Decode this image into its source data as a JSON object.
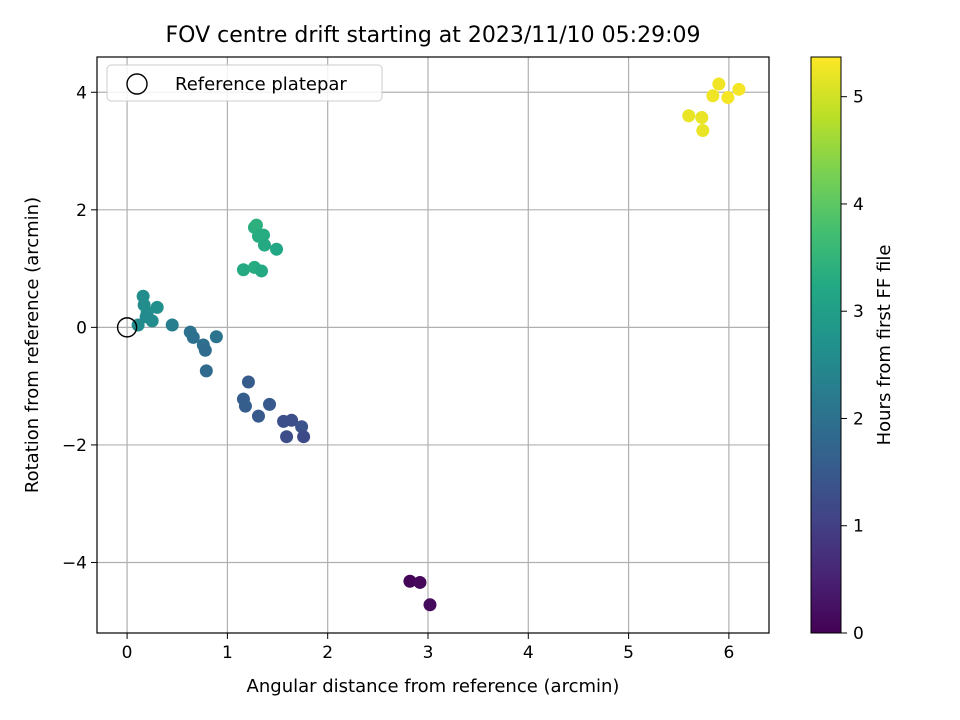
{
  "chart_data": {
    "type": "scatter",
    "title": "FOV centre drift starting at 2023/11/10 05:29:09",
    "xlabel": "Angular distance from reference (arcmin)",
    "ylabel": "Rotation from reference (arcmin)",
    "xlim": [
      -0.3,
      6.4
    ],
    "ylim": [
      -5.2,
      4.6
    ],
    "xticks": [
      0,
      1,
      2,
      3,
      4,
      5,
      6
    ],
    "yticks": [
      -4,
      -2,
      0,
      2,
      4
    ],
    "xtick_labels": [
      "0",
      "1",
      "2",
      "3",
      "4",
      "5",
      "6"
    ],
    "ytick_labels": [
      "−4",
      "−2",
      "0",
      "2",
      "4"
    ],
    "grid": true,
    "legend": {
      "position": "top-left",
      "entries": [
        {
          "label": "Reference platepar",
          "marker": "hollow-circle",
          "x": 0,
          "y": 0
        }
      ]
    },
    "colorbar": {
      "label": "Hours from first FF file",
      "colormap": "viridis",
      "range": [
        0,
        5.37
      ],
      "ticks": [
        0,
        1,
        2,
        3,
        4,
        5
      ],
      "tick_labels": [
        "0",
        "1",
        "2",
        "3",
        "4",
        "5"
      ]
    },
    "points": [
      {
        "x": 2.82,
        "y": -4.32,
        "h": 0.05
      },
      {
        "x": 2.92,
        "y": -4.34,
        "h": 0.1
      },
      {
        "x": 3.02,
        "y": -4.72,
        "h": 0.15
      },
      {
        "x": 1.56,
        "y": -1.6,
        "h": 1.3
      },
      {
        "x": 1.64,
        "y": -1.58,
        "h": 1.3
      },
      {
        "x": 1.74,
        "y": -1.69,
        "h": 1.35
      },
      {
        "x": 1.59,
        "y": -1.86,
        "h": 1.25
      },
      {
        "x": 1.76,
        "y": -1.86,
        "h": 1.2
      },
      {
        "x": 1.42,
        "y": -1.31,
        "h": 1.5
      },
      {
        "x": 1.21,
        "y": -0.93,
        "h": 1.55
      },
      {
        "x": 1.16,
        "y": -1.22,
        "h": 1.6
      },
      {
        "x": 1.18,
        "y": -1.34,
        "h": 1.6
      },
      {
        "x": 1.31,
        "y": -1.51,
        "h": 1.5
      },
      {
        "x": 0.63,
        "y": -0.08,
        "h": 2.0
      },
      {
        "x": 0.66,
        "y": -0.17,
        "h": 2.0
      },
      {
        "x": 0.76,
        "y": -0.3,
        "h": 1.95
      },
      {
        "x": 0.78,
        "y": -0.39,
        "h": 1.9
      },
      {
        "x": 0.89,
        "y": -0.16,
        "h": 2.05
      },
      {
        "x": 0.79,
        "y": -0.74,
        "h": 1.85
      },
      {
        "x": 0.45,
        "y": 0.04,
        "h": 2.25
      },
      {
        "x": 0.11,
        "y": 0.04,
        "h": 2.55
      },
      {
        "x": 0.16,
        "y": 0.53,
        "h": 2.6
      },
      {
        "x": 0.17,
        "y": 0.38,
        "h": 2.6
      },
      {
        "x": 0.2,
        "y": 0.25,
        "h": 2.62
      },
      {
        "x": 0.25,
        "y": 0.11,
        "h": 2.58
      },
      {
        "x": 0.3,
        "y": 0.34,
        "h": 2.65
      },
      {
        "x": 0.19,
        "y": 0.18,
        "h": 2.55
      },
      {
        "x": 1.16,
        "y": 0.98,
        "h": 3.25
      },
      {
        "x": 1.27,
        "y": 1.02,
        "h": 3.3
      },
      {
        "x": 1.34,
        "y": 0.96,
        "h": 3.25
      },
      {
        "x": 1.27,
        "y": 1.7,
        "h": 3.35
      },
      {
        "x": 1.29,
        "y": 1.74,
        "h": 3.4
      },
      {
        "x": 1.31,
        "y": 1.55,
        "h": 3.3
      },
      {
        "x": 1.36,
        "y": 1.57,
        "h": 3.3
      },
      {
        "x": 1.37,
        "y": 1.4,
        "h": 3.25
      },
      {
        "x": 1.49,
        "y": 1.33,
        "h": 3.2
      },
      {
        "x": 5.6,
        "y": 3.6,
        "h": 5.2
      },
      {
        "x": 5.73,
        "y": 3.57,
        "h": 5.2
      },
      {
        "x": 5.74,
        "y": 3.35,
        "h": 5.2
      },
      {
        "x": 5.84,
        "y": 3.94,
        "h": 5.25
      },
      {
        "x": 5.9,
        "y": 4.14,
        "h": 5.25
      },
      {
        "x": 5.99,
        "y": 3.91,
        "h": 5.3
      },
      {
        "x": 6.1,
        "y": 4.05,
        "h": 5.3
      }
    ]
  }
}
